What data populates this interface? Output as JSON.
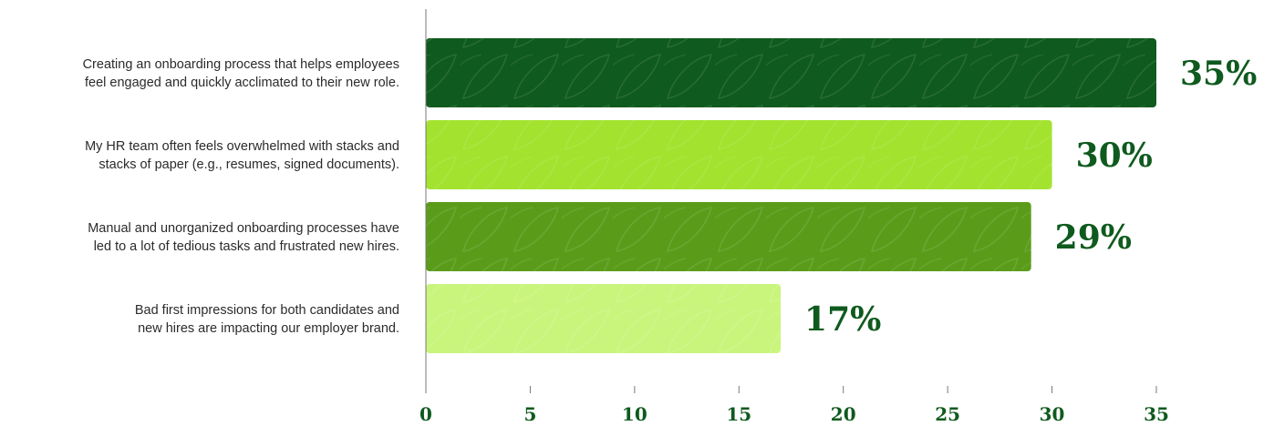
{
  "chart_data": {
    "type": "bar",
    "orientation": "horizontal",
    "categories": [
      [
        "Creating an onboarding process that helps employees",
        "feel engaged and quickly acclimated to their new role."
      ],
      [
        "My HR team often feels overwhelmed with stacks and",
        "stacks of paper (e.g., resumes, signed documents)."
      ],
      [
        "Manual and unorganized onboarding processes have",
        "led to a lot of tedious tasks and frustrated new hires."
      ],
      [
        "Bad first impressions for both candidates and",
        "new hires are impacting our employer brand."
      ]
    ],
    "values": [
      35,
      30,
      29,
      17
    ],
    "value_labels": [
      "35%",
      "30%",
      "29%",
      "17%"
    ],
    "bar_colors": [
      "#0f5a1e",
      "#a3e22e",
      "#5a9c1a",
      "#c9f57d"
    ],
    "xlim": [
      0,
      35
    ],
    "xticks": [
      0,
      5,
      10,
      15,
      20,
      25,
      30,
      35
    ],
    "title": "",
    "xlabel": "",
    "ylabel": "",
    "grid": false,
    "legend": "none"
  },
  "colors": {
    "label_text": "#2b2b2b",
    "value_text": "#0f5a1e",
    "axis": "#777777"
  }
}
